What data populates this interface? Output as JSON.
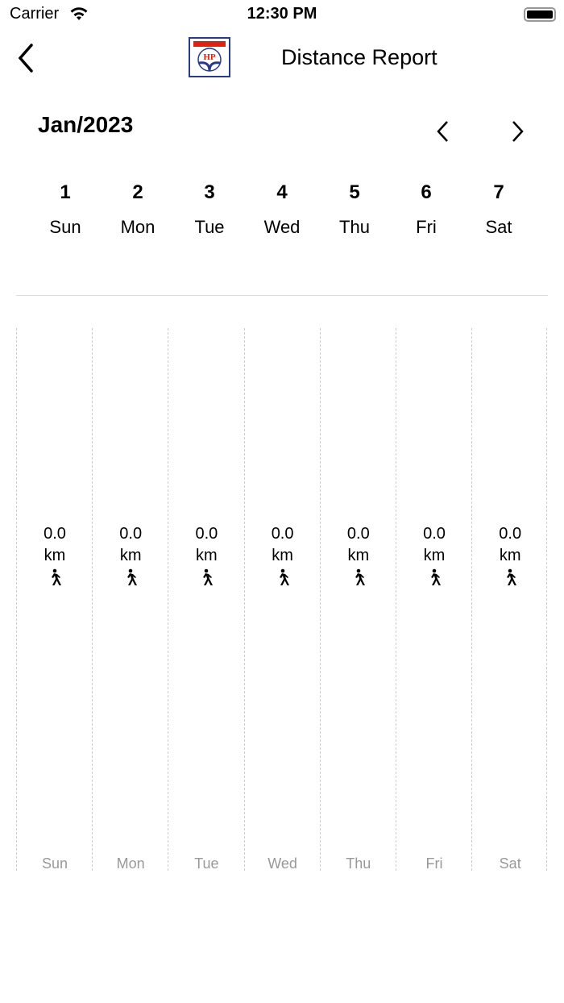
{
  "status": {
    "carrier": "Carrier",
    "time": "12:30 PM"
  },
  "header": {
    "title": "Distance Report",
    "logo_text": "HP"
  },
  "calendar": {
    "month": "Jan/2023",
    "days": [
      {
        "num": "1",
        "name": "Sun"
      },
      {
        "num": "2",
        "name": "Mon"
      },
      {
        "num": "3",
        "name": "Tue"
      },
      {
        "num": "4",
        "name": "Wed"
      },
      {
        "num": "5",
        "name": "Thu"
      },
      {
        "num": "6",
        "name": "Fri"
      },
      {
        "num": "7",
        "name": "Sat"
      }
    ]
  },
  "chart": {
    "unit": "km",
    "icon": "walking-person-icon",
    "bars": [
      {
        "label": "Sun",
        "value": "0.0"
      },
      {
        "label": "Mon",
        "value": "0.0"
      },
      {
        "label": "Tue",
        "value": "0.0"
      },
      {
        "label": "Wed",
        "value": "0.0"
      },
      {
        "label": "Thu",
        "value": "0.0"
      },
      {
        "label": "Fri",
        "value": "0.0"
      },
      {
        "label": "Sat",
        "value": "0.0"
      }
    ]
  }
}
